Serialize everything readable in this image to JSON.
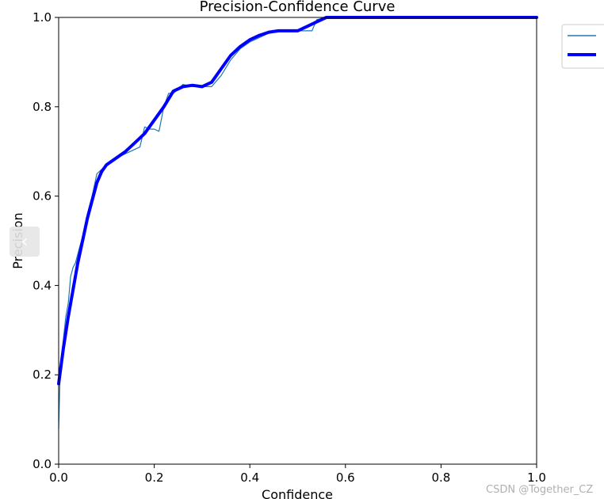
{
  "chart_data": {
    "type": "line",
    "title": "Precision-Confidence Curve",
    "xlabel": "Confidence",
    "ylabel": "Precision",
    "xlim": [
      0.0,
      1.0
    ],
    "ylim": [
      0.0,
      1.0
    ],
    "xticks": [
      "0.0",
      "0.2",
      "0.4",
      "0.6",
      "0.8",
      "1.0"
    ],
    "yticks": [
      "0.0",
      "0.2",
      "0.4",
      "0.6",
      "0.8",
      "1.0"
    ],
    "grid": false,
    "legend_position": "upper right outside",
    "series": [
      {
        "color": "#1f77b4",
        "width": "thin",
        "x": [
          0.0,
          0.003,
          0.006,
          0.01,
          0.015,
          0.02,
          0.025,
          0.03,
          0.035,
          0.04,
          0.05,
          0.06,
          0.07,
          0.08,
          0.09,
          0.1,
          0.12,
          0.15,
          0.17,
          0.18,
          0.19,
          0.2,
          0.21,
          0.22,
          0.23,
          0.24,
          0.26,
          0.28,
          0.3,
          0.32,
          0.34,
          0.36,
          0.38,
          0.4,
          0.42,
          0.44,
          0.46,
          0.48,
          0.5,
          0.52,
          0.53,
          0.54,
          0.56,
          0.6,
          0.7,
          0.8,
          0.9,
          1.0
        ],
        "y": [
          0.08,
          0.2,
          0.24,
          0.28,
          0.33,
          0.36,
          0.42,
          0.44,
          0.45,
          0.47,
          0.51,
          0.56,
          0.6,
          0.65,
          0.66,
          0.67,
          0.685,
          0.7,
          0.71,
          0.755,
          0.75,
          0.75,
          0.745,
          0.8,
          0.83,
          0.83,
          0.85,
          0.845,
          0.845,
          0.845,
          0.87,
          0.905,
          0.93,
          0.945,
          0.955,
          0.965,
          0.97,
          0.97,
          0.97,
          0.97,
          0.97,
          0.995,
          1.0,
          1.0,
          1.0,
          1.0,
          1.0,
          1.0
        ]
      },
      {
        "color": "#0000ff",
        "width": "thick",
        "x": [
          0.0,
          0.005,
          0.01,
          0.02,
          0.03,
          0.04,
          0.05,
          0.06,
          0.07,
          0.08,
          0.09,
          0.1,
          0.12,
          0.14,
          0.16,
          0.18,
          0.2,
          0.22,
          0.24,
          0.26,
          0.28,
          0.3,
          0.32,
          0.34,
          0.36,
          0.38,
          0.4,
          0.42,
          0.44,
          0.46,
          0.48,
          0.5,
          0.52,
          0.54,
          0.56,
          0.6,
          0.7,
          0.8,
          0.9,
          1.0
        ],
        "y": [
          0.18,
          0.22,
          0.26,
          0.33,
          0.39,
          0.45,
          0.5,
          0.55,
          0.59,
          0.63,
          0.655,
          0.67,
          0.685,
          0.7,
          0.72,
          0.74,
          0.77,
          0.8,
          0.835,
          0.845,
          0.848,
          0.845,
          0.855,
          0.885,
          0.915,
          0.935,
          0.95,
          0.96,
          0.967,
          0.97,
          0.97,
          0.97,
          0.98,
          0.99,
          1.0,
          1.0,
          1.0,
          1.0,
          1.0,
          1.0
        ]
      }
    ]
  },
  "ui": {
    "side_tab_glyph": "‹",
    "watermark": "CSDN @Together_CZ"
  }
}
